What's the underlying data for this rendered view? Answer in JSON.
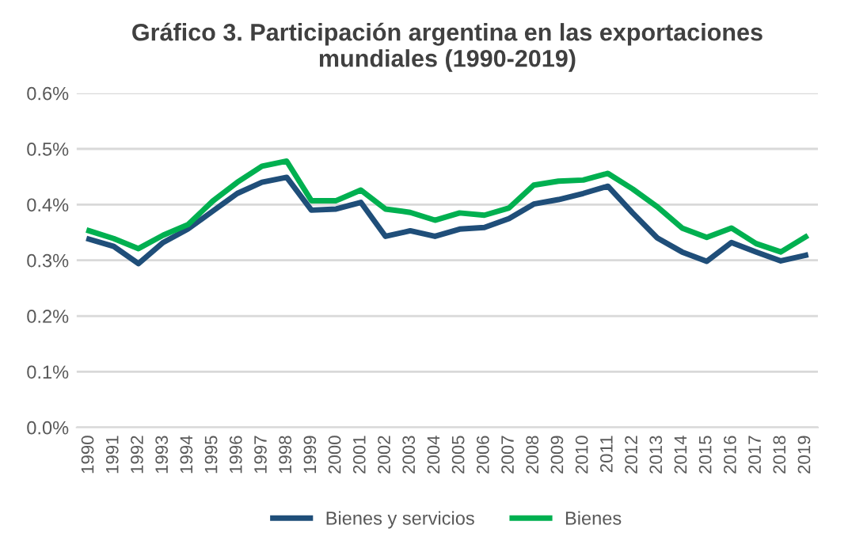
{
  "chart_data": {
    "type": "line",
    "title": "Gráfico 3. Participación argentina en las exportaciones\nmundiales (1990-2019)",
    "categories": [
      "1990",
      "1991",
      "1992",
      "1993",
      "1994",
      "1995",
      "1996",
      "1997",
      "1998",
      "1999",
      "2000",
      "2001",
      "2002",
      "2003",
      "2004",
      "2005",
      "2006",
      "2007",
      "2008",
      "2009",
      "2010",
      "2011",
      "2012",
      "2013",
      "2014",
      "2015",
      "2016",
      "2017",
      "2018",
      "2019"
    ],
    "series": [
      {
        "name": "Bienes y servicios",
        "color": "#1f4e79",
        "values": [
          0.338,
          0.325,
          0.294,
          0.332,
          0.356,
          0.388,
          0.42,
          0.44,
          0.449,
          0.39,
          0.392,
          0.404,
          0.343,
          0.353,
          0.343,
          0.356,
          0.359,
          0.375,
          0.401,
          0.409,
          0.42,
          0.433,
          0.385,
          0.34,
          0.315,
          0.298,
          0.332,
          0.315,
          0.299,
          0.309
        ]
      },
      {
        "name": "Bienes",
        "color": "#00b050",
        "values": [
          0.353,
          0.339,
          0.321,
          0.345,
          0.364,
          0.406,
          0.44,
          0.469,
          0.478,
          0.407,
          0.407,
          0.426,
          0.392,
          0.386,
          0.372,
          0.385,
          0.381,
          0.394,
          0.435,
          0.442,
          0.444,
          0.456,
          0.428,
          0.396,
          0.358,
          0.341,
          0.358,
          0.33,
          0.315,
          0.342
        ]
      }
    ],
    "ylim": [
      0,
      0.6
    ],
    "yticks": [
      {
        "value": 0,
        "label": "0.0%"
      },
      {
        "value": 0.1,
        "label": "0.1%"
      },
      {
        "value": 0.2,
        "label": "0.2%"
      },
      {
        "value": 0.3,
        "label": "0.3%"
      },
      {
        "value": 0.4,
        "label": "0.4%"
      },
      {
        "value": 0.5,
        "label": "0.5%"
      },
      {
        "value": 0.6,
        "label": "0.6%"
      }
    ],
    "grid": "y",
    "legend": "bottom",
    "marker": "none",
    "line_style": "solid"
  }
}
